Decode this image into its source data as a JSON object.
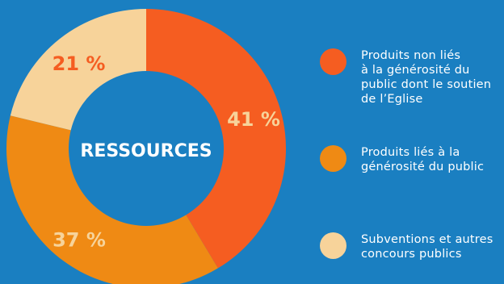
{
  "chart_data": {
    "type": "pie",
    "variant": "donut",
    "center_label": "RESSOURCES",
    "slices": [
      {
        "label": "Produits non liés\nà la générosité du\npublic dont le soutien\nde l’Eglise",
        "value": 41,
        "display": "41 %",
        "color": "#f55d21"
      },
      {
        "label": "Produits liés à la\ngénérosité du public",
        "value": 37,
        "display": "37 %",
        "color": "#ef8a14"
      },
      {
        "label": "Subventions et autres\nconcours publics",
        "value": 21,
        "display": "21 %",
        "color": "#f7d39a"
      }
    ],
    "label_colors": [
      "#f7d39a",
      "#f7d39a",
      "#f55d21"
    ],
    "legend_placement": "right"
  }
}
